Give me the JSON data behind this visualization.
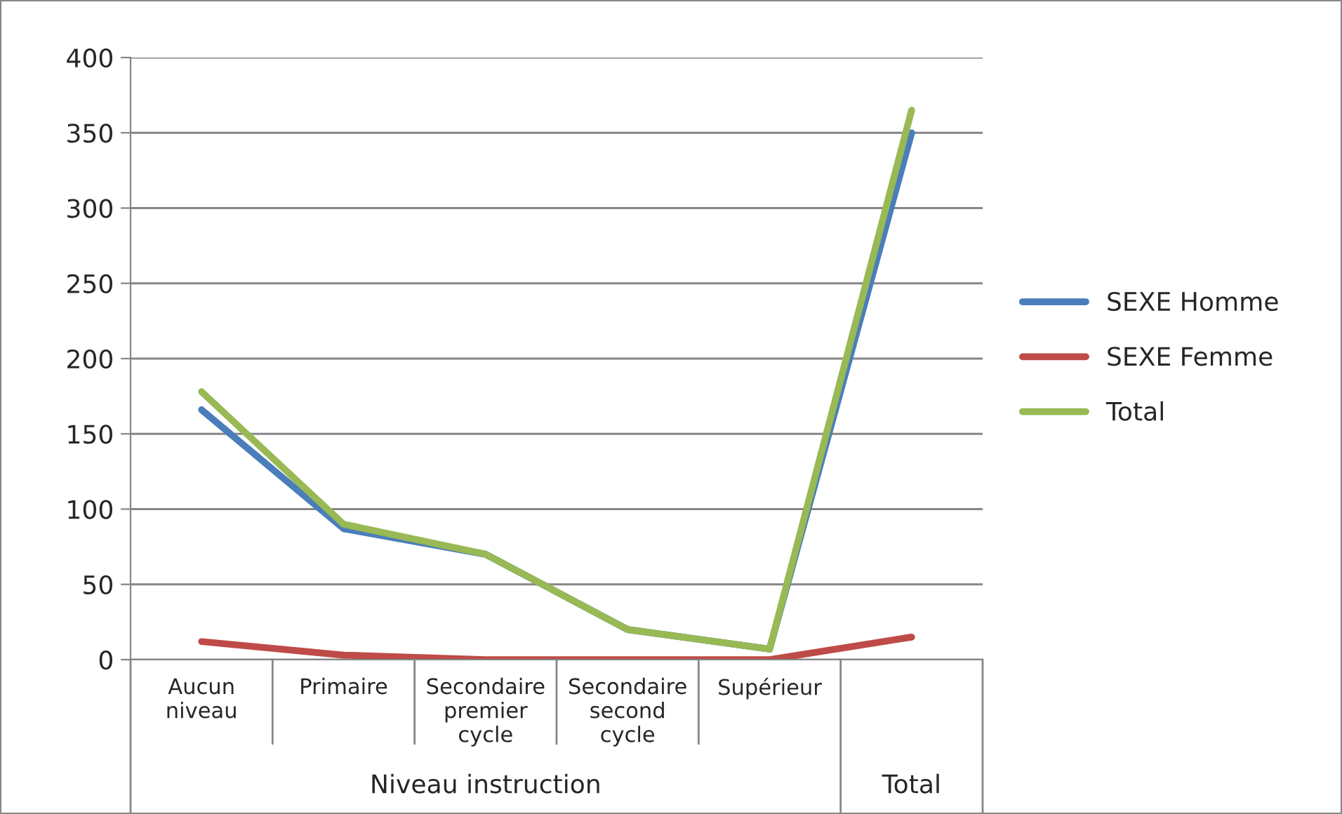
{
  "chart_data": {
    "type": "line",
    "xlabel": "Niveau instruction",
    "categories": [
      "Aucun niveau",
      "Primaire",
      "Secondaire premier cycle",
      "Secondaire second cycle",
      "Supérieur",
      null
    ],
    "annotations": [
      "Total"
    ],
    "series": [
      {
        "name": "SEXE Homme",
        "color": "#4a7ebb",
        "values": [
          166,
          87,
          70,
          20,
          7,
          350
        ]
      },
      {
        "name": "SEXE Femme",
        "color": "#be4b48",
        "values": [
          12,
          3,
          0,
          0,
          0,
          15
        ]
      },
      {
        "name": "Total",
        "color": "#98b954",
        "values": [
          178,
          90,
          70,
          20,
          7,
          365
        ]
      }
    ],
    "ylim": [
      0,
      400
    ],
    "yticks": [
      0,
      50,
      100,
      150,
      200,
      250,
      300,
      350,
      400
    ],
    "grid": "y",
    "legend": "right",
    "marker": "none",
    "line_style": "solid"
  }
}
